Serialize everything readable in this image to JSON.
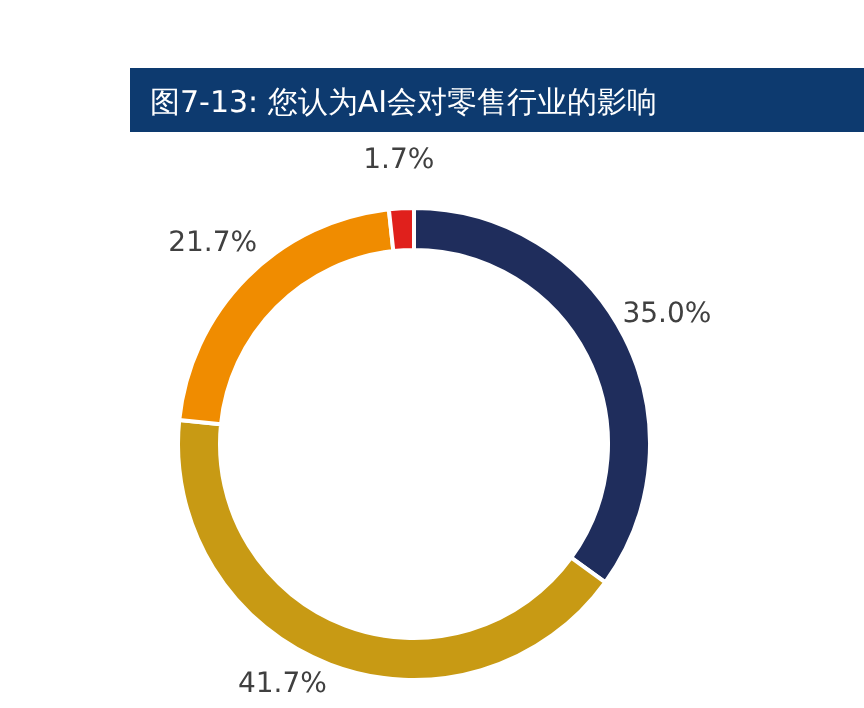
{
  "chart_data": {
    "type": "donut",
    "title": "图7-13: 您认为AI会对零售行业的影响",
    "categories": [
      null,
      null,
      null,
      null
    ],
    "values": [
      35.0,
      41.7,
      21.7,
      1.7
    ],
    "colors": [
      "#1f2d5c",
      "#c89a14",
      "#f08c00",
      "#e0201c"
    ],
    "value_labels": [
      "35.0%",
      "41.7%",
      "21.7%",
      "1.7%"
    ],
    "legend": false
  }
}
